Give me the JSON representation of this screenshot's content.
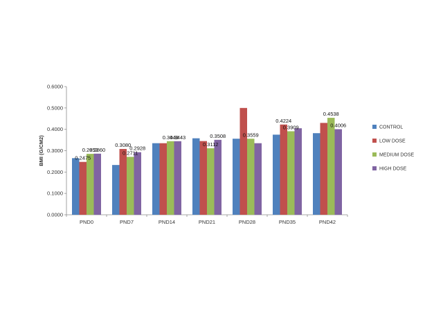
{
  "chart_data": {
    "type": "bar",
    "title": "",
    "xlabel": "",
    "ylabel": "BMI (G/CM2)",
    "ylim": [
      0,
      0.6
    ],
    "yticks": [
      "0.0000",
      "0.1000",
      "0.2000",
      "0.3000",
      "0.4000",
      "0.5000",
      "0.6000"
    ],
    "grid": false,
    "legend_position": "right",
    "categories": [
      "PND0",
      "PND7",
      "PND14",
      "PND21",
      "PND28",
      "PND35",
      "PND42"
    ],
    "series": [
      {
        "name": "CONTROL",
        "color": "#4F81BD",
        "values": [
          0.265,
          0.233,
          0.335,
          0.358,
          0.356,
          0.375,
          0.382
        ],
        "labels": [
          null,
          null,
          null,
          null,
          null,
          null,
          null
        ]
      },
      {
        "name": "LOW DOSE",
        "color": "#C0504D",
        "values": [
          0.2475,
          0.308,
          0.335,
          0.345,
          0.5,
          0.4224,
          0.43
        ],
        "labels": [
          "0.2475",
          "0.3080",
          null,
          null,
          null,
          "0.4224",
          null
        ]
      },
      {
        "name": "MEDIUM DOSE",
        "color": "#9BBB59",
        "values": [
          0.2852,
          0.2711,
          0.3443,
          0.3112,
          0.3559,
          0.3909,
          0.4538
        ],
        "labels": [
          "0.2852",
          "0.2711",
          "0.3443",
          "0.3112",
          "0.3559",
          "0.3909",
          "0.4538"
        ]
      },
      {
        "name": "HIGH DOSE",
        "color": "#8064A2",
        "values": [
          0.286,
          0.2928,
          0.3443,
          0.3508,
          0.335,
          0.405,
          0.4006
        ],
        "labels": [
          "0.2860",
          "0.2928",
          "0.3443",
          "0.3508",
          null,
          null,
          "0.4006"
        ]
      }
    ]
  }
}
